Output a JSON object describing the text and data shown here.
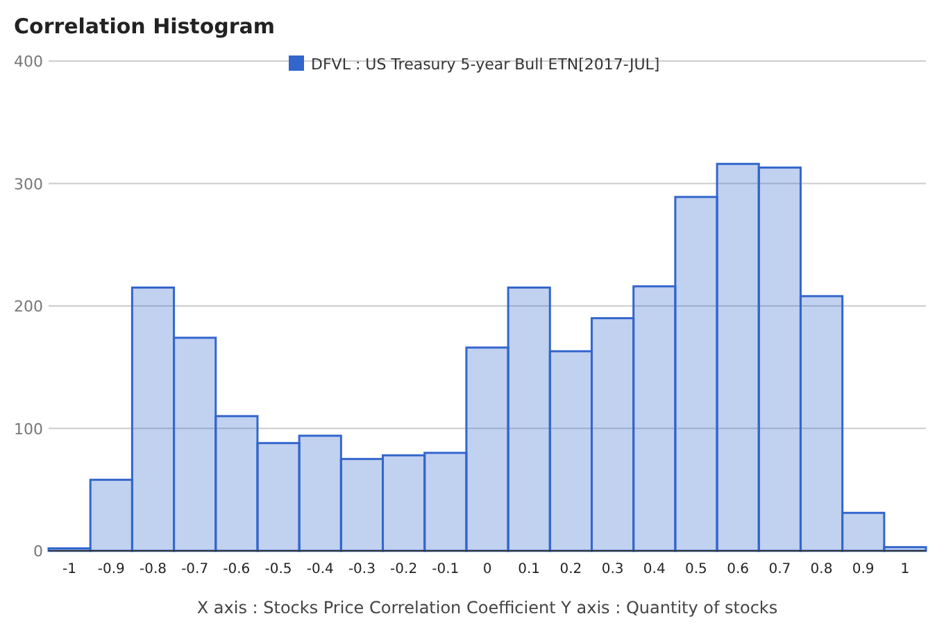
{
  "chart_data": {
    "type": "histogram",
    "title": "Correlation Histogram",
    "xlabel": "X axis : Stocks Price Correlation Coefficient  Y axis : Quantity of stocks",
    "bins": [
      -1.05,
      -0.95,
      -0.85,
      -0.75,
      -0.65,
      -0.55,
      -0.45,
      -0.35,
      -0.25,
      -0.15,
      -0.05,
      0.05,
      0.15,
      0.25,
      0.35,
      0.45,
      0.55,
      0.65,
      0.75,
      0.85,
      0.95,
      1.05
    ],
    "series": [
      {
        "name": "DFVL : US Treasury 5-year Bull ETN[2017-JUL]",
        "color": "#3366cc",
        "values": [
          2,
          58,
          215,
          174,
          110,
          88,
          94,
          75,
          78,
          80,
          166,
          215,
          163,
          190,
          216,
          289,
          316,
          313,
          208,
          31,
          3
        ]
      }
    ],
    "xlim": [
      -1.05,
      1.05
    ],
    "xticks": [
      -1,
      -0.9,
      -0.8,
      -0.7,
      -0.6,
      -0.5,
      -0.4,
      -0.3,
      -0.2,
      -0.1,
      0,
      0.1,
      0.2,
      0.3,
      0.4,
      0.5,
      0.6,
      0.7,
      0.8,
      0.9,
      1
    ],
    "ylim": [
      0,
      400
    ],
    "yticks": [
      0,
      100,
      200,
      300,
      400
    ],
    "grid": "y",
    "legend": "top"
  }
}
